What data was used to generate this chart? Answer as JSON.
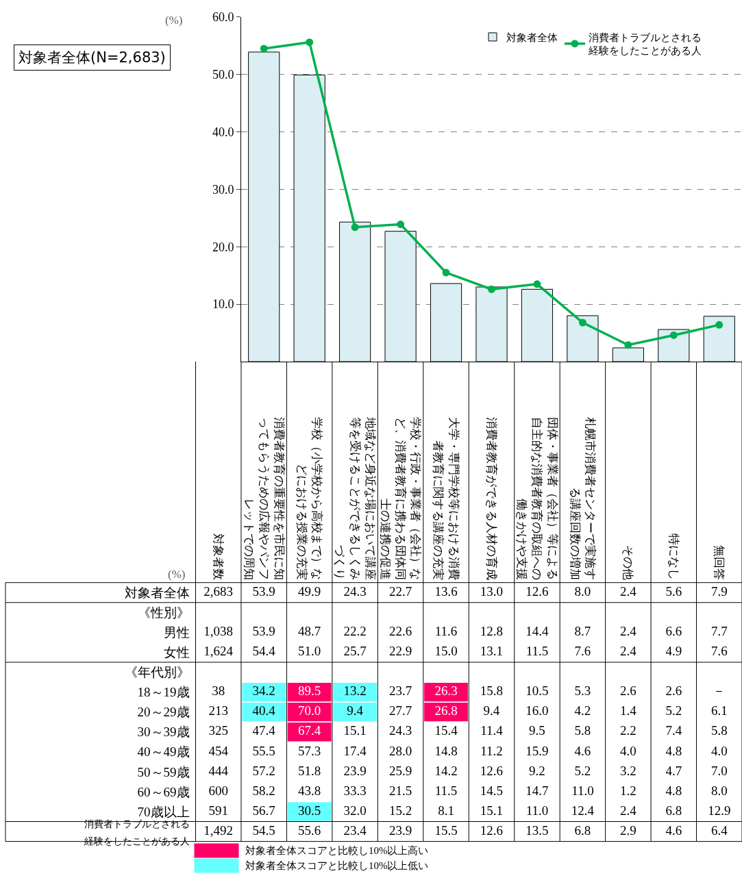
{
  "chart_data": [
    {
      "type": "bar",
      "title": "対象者全体(N=2,683)",
      "categories": [
        "消費者教育の重要性を市民に知ってもらうための広報やパンフレットでの周知",
        "学校（小学校から高校まで）などにおける授業の充実",
        "地域など身近な場において講座等を受けることができるしくみづくり",
        "学校・行政・事業者（会社）など、消費者教育に携わる団体同士の連携の促進",
        "大学・専門学校等における消費者教育に関する講座の充実",
        "消費者教育ができる人材の育成",
        "団体・事業者（会社）等による自主的な消費者教育の取組への働きかけや支援",
        "札幌市消費者センターで実施する講座回数の増加",
        "その他",
        "特になし",
        "無回答"
      ],
      "series": [
        {
          "name": "対象者全体",
          "color": "#daeef3",
          "values": [
            53.9,
            49.9,
            24.3,
            22.7,
            13.6,
            13.0,
            12.6,
            8.0,
            2.4,
            5.6,
            7.9
          ]
        },
        {
          "name": "消費者トラブルとされる経験をしたことがある人",
          "type": "line",
          "color": "#00b050",
          "values": [
            54.5,
            55.6,
            23.4,
            23.9,
            15.5,
            12.6,
            13.5,
            6.8,
            2.9,
            4.6,
            6.4
          ]
        }
      ],
      "ylim": [
        0,
        60
      ],
      "yticks": [
        {
          "value": 10,
          "label": "10.0"
        },
        {
          "value": 20,
          "label": "20.0"
        },
        {
          "value": 30,
          "label": "30.0"
        },
        {
          "value": 40,
          "label": "40.0"
        },
        {
          "value": 50,
          "label": "50.0"
        },
        {
          "value": 60,
          "label": "60.0"
        }
      ],
      "grid": "y",
      "legend": "top right",
      "marker": "circle",
      "tick_labels": "y",
      "annotations": [
        "(%)"
      ]
    },
    {
      "type": "heatmap",
      "categories": [
        "対象者数",
        "消費者教育の重要性を市民に知ってもらうための広報やパンフレットでの周知",
        "学校（小学校から高校まで）などにおける授業の充実",
        "地域など身近な場において講座等を受けることができるしくみづくり",
        "学校・行政・事業者（会社）など、消費者教育に携わる団体同士の連携の促進",
        "大学・専門学校等における消費者教育に関する講座の充実",
        "消費者教育ができる人材の育成",
        "団体・事業者（会社）等による自主的な消費者教育の取組への働きかけや支援",
        "札幌市消費者センターで実施する講座回数の増加",
        "その他",
        "特になし",
        "無回答"
      ],
      "y_categories": [
        "対象者全体",
        "《性別》",
        "男性",
        "女性",
        "《年代別》",
        "18～19歳",
        "20～29歳",
        "30～39歳",
        "40～49歳",
        "50～59歳",
        "60～69歳",
        "70歳以上",
        "消費者トラブルとされる経験をしたことがある人"
      ],
      "cells": [
        [
          2683,
          53.9,
          49.9,
          24.3,
          22.7,
          13.6,
          13.0,
          12.6,
          8.0,
          2.4,
          5.6,
          7.9
        ],
        [
          null,
          null,
          null,
          null,
          null,
          null,
          null,
          null,
          null,
          null,
          null,
          null
        ],
        [
          1038,
          53.9,
          48.7,
          22.2,
          22.6,
          11.6,
          12.8,
          14.4,
          8.7,
          2.4,
          6.6,
          7.7
        ],
        [
          1624,
          54.4,
          51.0,
          25.7,
          22.9,
          15.0,
          13.1,
          11.5,
          7.6,
          2.4,
          4.9,
          7.6
        ],
        [
          null,
          null,
          null,
          null,
          null,
          null,
          null,
          null,
          null,
          null,
          null,
          null
        ],
        [
          38,
          34.2,
          89.5,
          13.2,
          23.7,
          26.3,
          15.8,
          10.5,
          5.3,
          2.6,
          2.6,
          null
        ],
        [
          213,
          40.4,
          70.0,
          9.4,
          27.7,
          26.8,
          9.4,
          16.0,
          4.2,
          1.4,
          5.2,
          6.1
        ],
        [
          325,
          47.4,
          67.4,
          15.1,
          24.3,
          15.4,
          11.4,
          9.5,
          5.8,
          2.2,
          7.4,
          5.8
        ],
        [
          454,
          55.5,
          57.3,
          17.4,
          28.0,
          14.8,
          11.2,
          15.9,
          4.6,
          4.0,
          4.8,
          4.0
        ],
        [
          444,
          57.2,
          51.8,
          23.9,
          25.9,
          14.2,
          12.6,
          9.2,
          5.2,
          3.2,
          4.7,
          7.0
        ],
        [
          600,
          58.2,
          43.8,
          33.3,
          21.5,
          11.5,
          14.5,
          14.7,
          11.0,
          1.2,
          4.8,
          8.0
        ],
        [
          591,
          56.7,
          30.5,
          32.0,
          15.2,
          8.1,
          15.1,
          11.0,
          12.4,
          2.4,
          6.8,
          12.9
        ],
        [
          1492,
          54.5,
          55.6,
          23.4,
          23.9,
          15.5,
          12.6,
          13.5,
          6.8,
          2.9,
          4.6,
          6.4
        ]
      ],
      "cell_labels": [
        [
          "2,683",
          "53.9",
          "49.9",
          "24.3",
          "22.7",
          "13.6",
          "13.0",
          "12.6",
          "8.0",
          "2.4",
          "5.6",
          "7.9"
        ],
        [
          null,
          null,
          null,
          null,
          null,
          null,
          null,
          null,
          null,
          null,
          null,
          null
        ],
        [
          "1,038",
          "53.9",
          "48.7",
          "22.2",
          "22.6",
          "11.6",
          "12.8",
          "14.4",
          "8.7",
          "2.4",
          "6.6",
          "7.7"
        ],
        [
          "1,624",
          "54.4",
          "51.0",
          "25.7",
          "22.9",
          "15.0",
          "13.1",
          "11.5",
          "7.6",
          "2.4",
          "4.9",
          "7.6"
        ],
        [
          null,
          null,
          null,
          null,
          null,
          null,
          null,
          null,
          null,
          null,
          null,
          null
        ],
        [
          "38",
          "34.2",
          "89.5",
          "13.2",
          "23.7",
          "26.3",
          "15.8",
          "10.5",
          "5.3",
          "2.6",
          "2.6",
          "－"
        ],
        [
          "213",
          "40.4",
          "70.0",
          "9.4",
          "27.7",
          "26.8",
          "9.4",
          "16.0",
          "4.2",
          "1.4",
          "5.2",
          "6.1"
        ],
        [
          "325",
          "47.4",
          "67.4",
          "15.1",
          "24.3",
          "15.4",
          "11.4",
          "9.5",
          "5.8",
          "2.2",
          "7.4",
          "5.8"
        ],
        [
          "454",
          "55.5",
          "57.3",
          "17.4",
          "28.0",
          "14.8",
          "11.2",
          "15.9",
          "4.6",
          "4.0",
          "4.8",
          "4.0"
        ],
        [
          "444",
          "57.2",
          "51.8",
          "23.9",
          "25.9",
          "14.2",
          "12.6",
          "9.2",
          "5.2",
          "3.2",
          "4.7",
          "7.0"
        ],
        [
          "600",
          "58.2",
          "43.8",
          "33.3",
          "21.5",
          "11.5",
          "14.5",
          "14.7",
          "11.0",
          "1.2",
          "4.8",
          "8.0"
        ],
        [
          "591",
          "56.7",
          "30.5",
          "32.0",
          "15.2",
          "8.1",
          "15.1",
          "11.0",
          "12.4",
          "2.4",
          "6.8",
          "12.9"
        ],
        [
          "1,492",
          "54.5",
          "55.6",
          "23.4",
          "23.9",
          "15.5",
          "12.6",
          "13.5",
          "6.8",
          "2.9",
          "4.6",
          "6.4"
        ]
      ],
      "colors": [
        "#ff0066",
        "#66ffff"
      ],
      "annotations": [
        "(%)",
        "対象者全体スコアと比較し10%以上高い",
        "対象者全体スコアと比較し10%以上低い"
      ]
    }
  ]
}
